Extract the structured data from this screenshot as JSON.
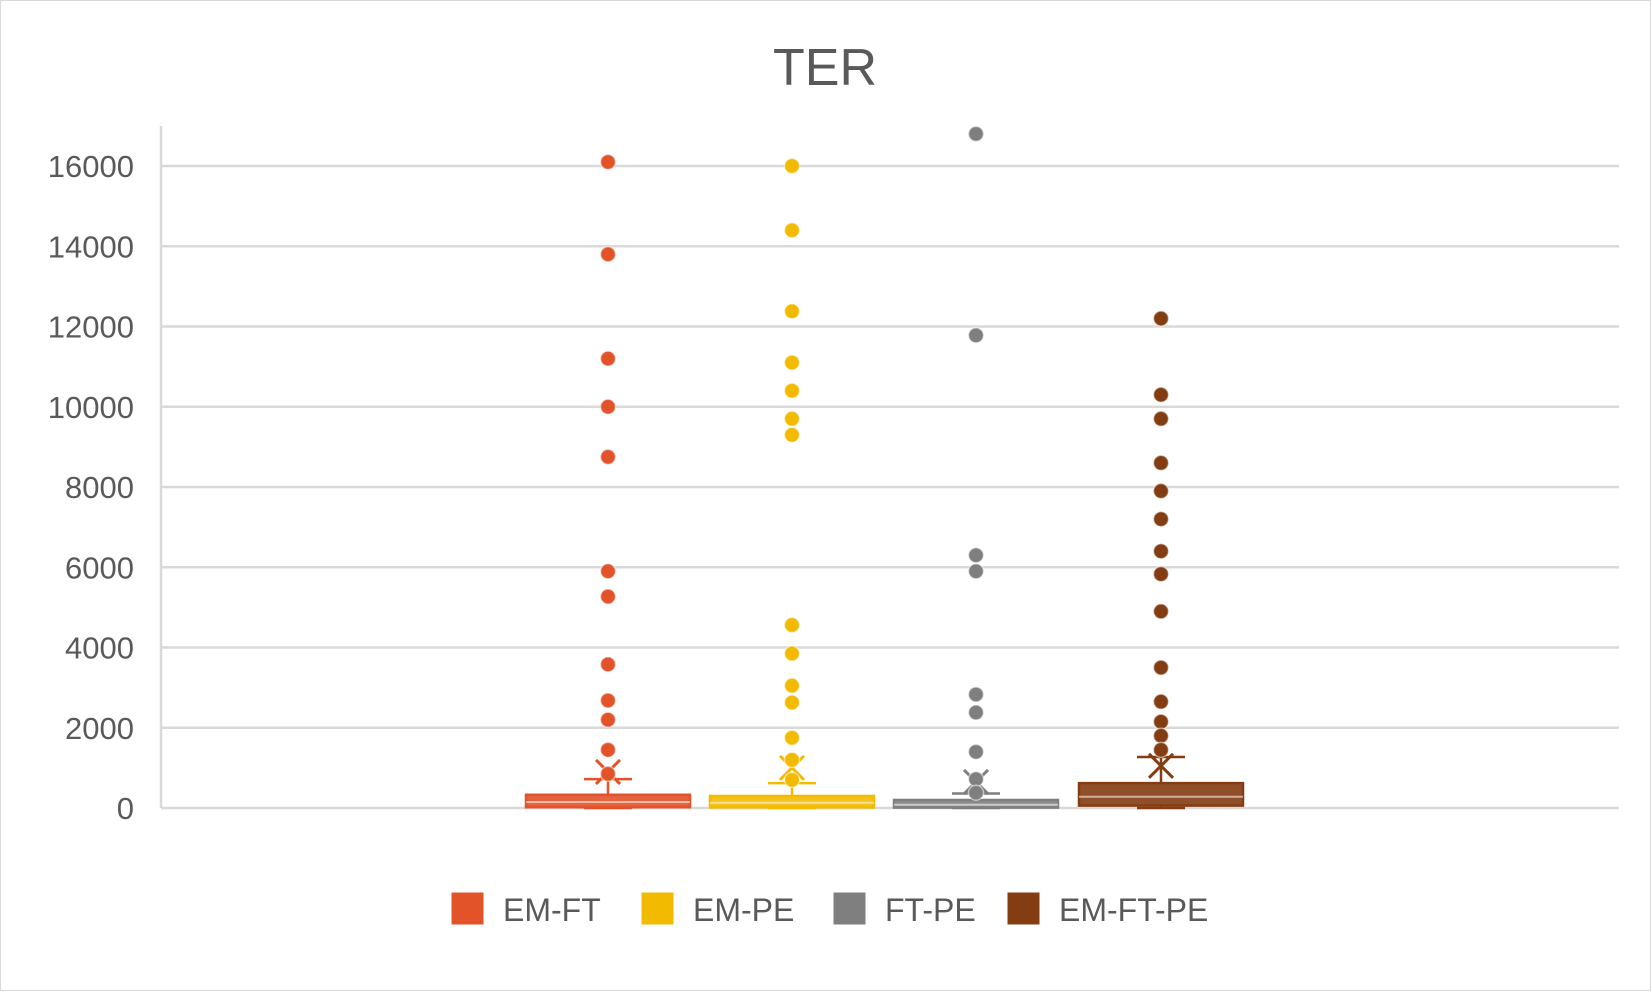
{
  "chart_data": {
    "type": "box",
    "title": "TER",
    "xlabel": "",
    "ylabel": "",
    "ylim": [
      0,
      17000
    ],
    "yticks": [
      0,
      2000,
      4000,
      6000,
      8000,
      10000,
      12000,
      14000,
      16000
    ],
    "y_tick_labels": [
      "0",
      "2000",
      "4000",
      "6000",
      "8000",
      "10000",
      "12000",
      "14000",
      "16000"
    ],
    "grid": true,
    "legend_position": "bottom",
    "series": [
      {
        "name": "EM-FT",
        "color": "#E2532A",
        "min": 0,
        "q1": 20,
        "median": 150,
        "q3": 330,
        "max": 720,
        "mean": 900,
        "outliers": [
          16100,
          13800,
          11200,
          10000,
          8750,
          5900,
          5270,
          3580,
          2680,
          2200,
          1450,
          850
        ]
      },
      {
        "name": "EM-PE",
        "color": "#F2BA00",
        "min": 0,
        "q1": 15,
        "median": 130,
        "q3": 300,
        "max": 620,
        "mean": 1000,
        "outliers": [
          16000,
          14400,
          12380,
          11100,
          10400,
          9700,
          9300,
          4560,
          3850,
          3050,
          2630,
          1750,
          1200,
          700
        ]
      },
      {
        "name": "FT-PE",
        "color": "#7F7F7F",
        "min": 0,
        "q1": 10,
        "median": 80,
        "q3": 200,
        "max": 360,
        "mean": 650,
        "outliers": [
          16800,
          11780,
          6300,
          5900,
          2830,
          2380,
          1400,
          720,
          380
        ]
      },
      {
        "name": "EM-FT-PE",
        "color": "#843C12",
        "min": 0,
        "q1": 60,
        "median": 280,
        "q3": 620,
        "max": 1270,
        "mean": 1050,
        "outliers": [
          12200,
          10300,
          9700,
          8600,
          7900,
          7200,
          6400,
          5830,
          4900,
          3500,
          2650,
          2150,
          1800,
          1450
        ]
      }
    ]
  }
}
